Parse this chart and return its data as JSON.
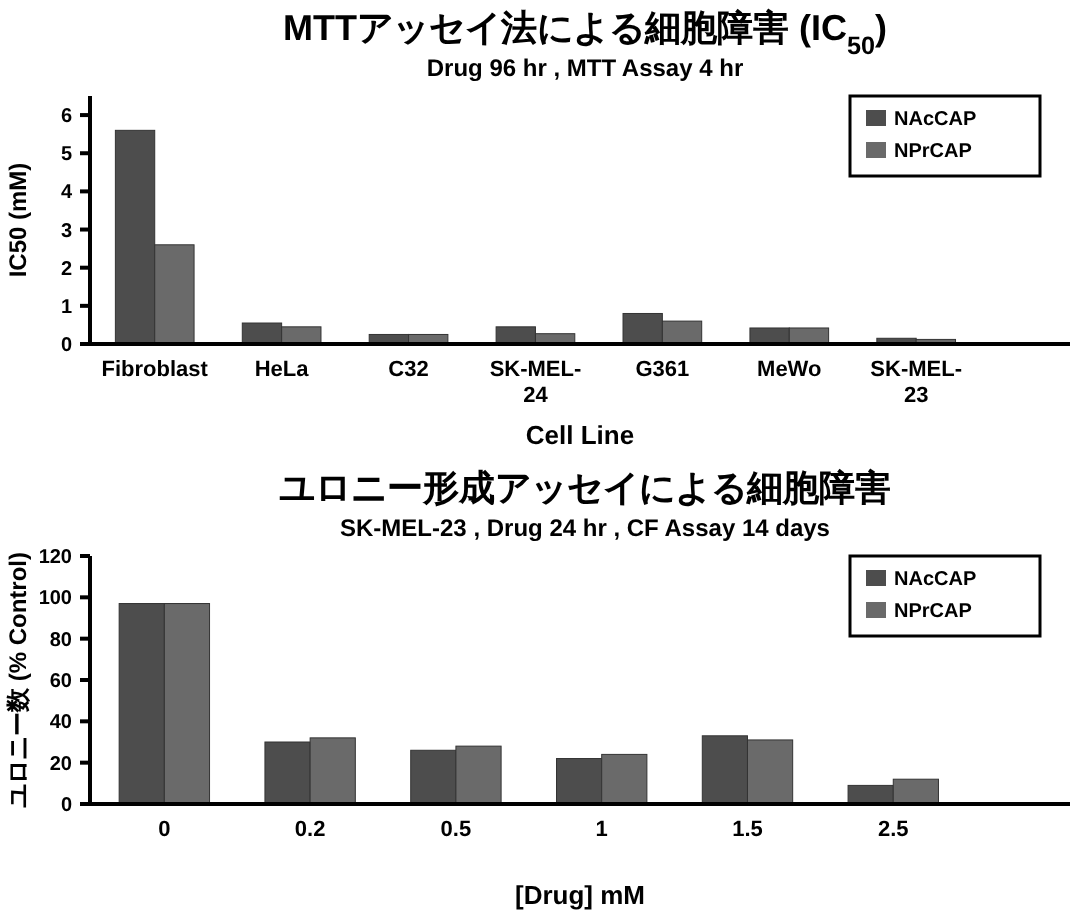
{
  "chart_data": [
    {
      "type": "bar",
      "title": "MTTアッセイ法による細胞障害 (IC$_{50}$)",
      "subtitle": "Drug 96 hr , MTT Assay 4 hr",
      "xlabel": "Cell Line",
      "ylabel": "IC50 (mM)",
      "categories": [
        "Fibroblast",
        "HeLa",
        "C32",
        "SK-MEL-24",
        "G361",
        "MeWo",
        "SK-MEL-23"
      ],
      "series": [
        {
          "name": "NAcCAP",
          "color": "#4d4d4d",
          "values": [
            5.6,
            0.55,
            0.25,
            0.45,
            0.8,
            0.42,
            0.15
          ]
        },
        {
          "name": "NPrCAP",
          "color": "#6a6a6a",
          "values": [
            2.6,
            0.45,
            0.25,
            0.27,
            0.6,
            0.42,
            0.12
          ]
        }
      ],
      "ylim": [
        0,
        6.5
      ],
      "yticks": [
        0,
        1,
        2,
        3,
        4,
        5,
        6
      ],
      "legend": "top right",
      "grid": false
    },
    {
      "type": "bar",
      "title": "ユロニー形成アッセイによる細胞障害",
      "subtitle": "SK-MEL-23 , Drug 24 hr , CF Assay 14 days",
      "xlabel": "[Drug] mM",
      "ylabel": "ユロニー数 (% Control)",
      "categories": [
        "0",
        "0.2",
        "0.5",
        "1",
        "1.5",
        "2.5"
      ],
      "series": [
        {
          "name": "NAcCAP",
          "color": "#4d4d4d",
          "values": [
            97,
            30,
            26,
            22,
            33,
            9
          ]
        },
        {
          "name": "NPrCAP",
          "color": "#6a6a6a",
          "values": [
            97,
            32,
            28,
            24,
            31,
            12
          ]
        }
      ],
      "ylim": [
        0,
        120
      ],
      "yticks": [
        0,
        20,
        40,
        60,
        80,
        100,
        120
      ],
      "legend": "top right",
      "grid": false
    }
  ]
}
